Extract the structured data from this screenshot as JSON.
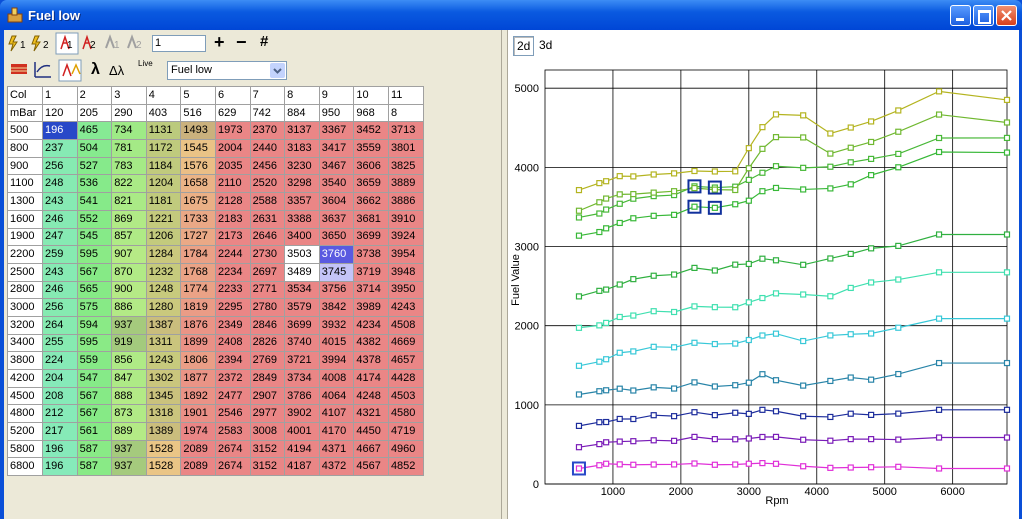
{
  "window": {
    "title": "Fuel low"
  },
  "toolbar": {
    "sub_labels": [
      "1",
      "2",
      "1",
      "2",
      "1",
      "2"
    ],
    "map_index": "1",
    "plus": "+",
    "minus": "−",
    "hash": "#",
    "lambda": "λ",
    "delta_lambda": "Δλ",
    "live": "Live",
    "map_select": "Fuel low"
  },
  "tabs": [
    "2d",
    "3d"
  ],
  "table": {
    "header": [
      "Col",
      1,
      2,
      3,
      4,
      5,
      6,
      7,
      8,
      9,
      10,
      11
    ],
    "mbar": [
      "mBar",
      120,
      205,
      290,
      403,
      516,
      629,
      742,
      884,
      950,
      968,
      8
    ],
    "rows": [
      [
        500,
        196,
        465,
        734,
        1131,
        1493,
        1973,
        2370,
        3137,
        3367,
        3452,
        3713
      ],
      [
        800,
        237,
        504,
        781,
        1172,
        1545,
        2004,
        2440,
        3183,
        3417,
        3559,
        3801
      ],
      [
        900,
        256,
        527,
        783,
        1184,
        1576,
        2035,
        2456,
        3230,
        3467,
        3606,
        3825
      ],
      [
        1100,
        248,
        536,
        822,
        1204,
        1658,
        2110,
        2520,
        3298,
        3540,
        3659,
        3889
      ],
      [
        1300,
        243,
        541,
        821,
        1181,
        1675,
        2128,
        2588,
        3357,
        3604,
        3662,
        3886
      ],
      [
        1600,
        246,
        552,
        869,
        1221,
        1733,
        2183,
        2631,
        3388,
        3637,
        3681,
        3910
      ],
      [
        1900,
        247,
        545,
        857,
        1206,
        1727,
        2173,
        2646,
        3400,
        3650,
        3699,
        3924
      ],
      [
        2200,
        259,
        595,
        907,
        1284,
        1784,
        2244,
        2730,
        3503,
        3760,
        3738,
        3954
      ],
      [
        2500,
        243,
        567,
        870,
        1232,
        1768,
        2234,
        2697,
        3489,
        3745,
        3719,
        3948
      ],
      [
        2800,
        246,
        565,
        900,
        1248,
        1774,
        2233,
        2771,
        3534,
        3756,
        3714,
        3950
      ],
      [
        3000,
        256,
        575,
        886,
        1280,
        1819,
        2295,
        2780,
        3579,
        3842,
        3989,
        4243
      ],
      [
        3200,
        264,
        594,
        937,
        1387,
        1876,
        2349,
        2846,
        3699,
        3932,
        4234,
        4508
      ],
      [
        3400,
        255,
        595,
        919,
        1311,
        1899,
        2408,
        2826,
        3740,
        4015,
        4382,
        4669
      ],
      [
        3800,
        224,
        559,
        856,
        1243,
        1806,
        2394,
        2769,
        3721,
        3994,
        4378,
        4657
      ],
      [
        4200,
        204,
        547,
        847,
        1302,
        1877,
        2372,
        2849,
        3734,
        4008,
        4174,
        4428
      ],
      [
        4500,
        208,
        567,
        888,
        1345,
        1892,
        2477,
        2907,
        3786,
        4064,
        4248,
        4503
      ],
      [
        4800,
        212,
        567,
        873,
        1318,
        1901,
        2546,
        2977,
        3902,
        4107,
        4321,
        4580
      ],
      [
        5200,
        217,
        561,
        889,
        1389,
        1974,
        2583,
        3008,
        4001,
        4170,
        4450,
        4719
      ],
      [
        5800,
        196,
        587,
        937,
        1528,
        2089,
        2674,
        3152,
        4194,
        4371,
        4667,
        4960
      ],
      [
        6800,
        196,
        587,
        937,
        1528,
        2089,
        2674,
        3152,
        4187,
        4372,
        4567,
        4852
      ]
    ]
  },
  "chart_data": {
    "type": "line",
    "x_label": "Rpm",
    "y_label": "Fuel Value",
    "x": [
      500,
      800,
      900,
      1100,
      1300,
      1600,
      1900,
      2200,
      2500,
      2800,
      3000,
      3200,
      3400,
      3800,
      4200,
      4500,
      4800,
      5200,
      5800,
      6800
    ],
    "xlim": [
      0,
      6800
    ],
    "ylim": [
      0,
      5230
    ],
    "xticks": [
      1000,
      2000,
      3000,
      4000,
      5000,
      6000
    ],
    "yticks": [
      0,
      1000,
      2000,
      3000,
      4000,
      5000
    ],
    "grid": true,
    "series": [
      {
        "color": "#e030d8",
        "values": [
          196,
          237,
          256,
          248,
          243,
          246,
          247,
          259,
          243,
          246,
          256,
          264,
          255,
          224,
          204,
          208,
          212,
          217,
          196,
          196
        ]
      },
      {
        "color": "#7a1cb8",
        "values": [
          465,
          504,
          527,
          536,
          541,
          552,
          545,
          595,
          567,
          565,
          575,
          594,
          595,
          559,
          547,
          567,
          567,
          561,
          587,
          587
        ]
      },
      {
        "color": "#1c2c9c",
        "values": [
          734,
          781,
          783,
          822,
          821,
          869,
          857,
          907,
          870,
          900,
          886,
          937,
          919,
          856,
          847,
          888,
          873,
          889,
          937,
          937
        ]
      },
      {
        "color": "#2884a8",
        "values": [
          1131,
          1172,
          1184,
          1204,
          1181,
          1221,
          1206,
          1284,
          1232,
          1248,
          1280,
          1387,
          1311,
          1243,
          1302,
          1345,
          1318,
          1389,
          1528,
          1528
        ]
      },
      {
        "color": "#38c8d8",
        "values": [
          1493,
          1545,
          1576,
          1658,
          1675,
          1733,
          1727,
          1784,
          1768,
          1774,
          1819,
          1876,
          1899,
          1806,
          1877,
          1892,
          1901,
          1974,
          2089,
          2089
        ]
      },
      {
        "color": "#40e0b0",
        "values": [
          1973,
          2004,
          2035,
          2110,
          2128,
          2183,
          2173,
          2244,
          2234,
          2233,
          2295,
          2349,
          2408,
          2394,
          2372,
          2477,
          2546,
          2583,
          2674,
          2674
        ]
      },
      {
        "color": "#30b040",
        "values": [
          2370,
          2440,
          2456,
          2520,
          2588,
          2631,
          2646,
          2730,
          2697,
          2771,
          2780,
          2846,
          2826,
          2769,
          2849,
          2907,
          2977,
          3008,
          3152,
          3152
        ]
      },
      {
        "color": "#38b838",
        "values": [
          3137,
          3183,
          3230,
          3298,
          3357,
          3388,
          3400,
          3503,
          3489,
          3534,
          3579,
          3699,
          3740,
          3721,
          3734,
          3786,
          3902,
          4001,
          4194,
          4187
        ]
      },
      {
        "color": "#48b838",
        "values": [
          3367,
          3417,
          3467,
          3540,
          3604,
          3637,
          3650,
          3760,
          3745,
          3756,
          3842,
          3932,
          4015,
          3994,
          4008,
          4064,
          4107,
          4170,
          4371,
          4372
        ]
      },
      {
        "color": "#70b830",
        "values": [
          3452,
          3559,
          3606,
          3659,
          3662,
          3681,
          3699,
          3738,
          3719,
          3714,
          3989,
          4234,
          4382,
          4378,
          4174,
          4248,
          4321,
          4450,
          4667,
          4567
        ]
      },
      {
        "color": "#b4b420",
        "values": [
          3713,
          3801,
          3825,
          3889,
          3886,
          3910,
          3924,
          3954,
          3948,
          3950,
          4243,
          4508,
          4669,
          4657,
          4428,
          4503,
          4580,
          4719,
          4960,
          4852
        ]
      }
    ]
  }
}
